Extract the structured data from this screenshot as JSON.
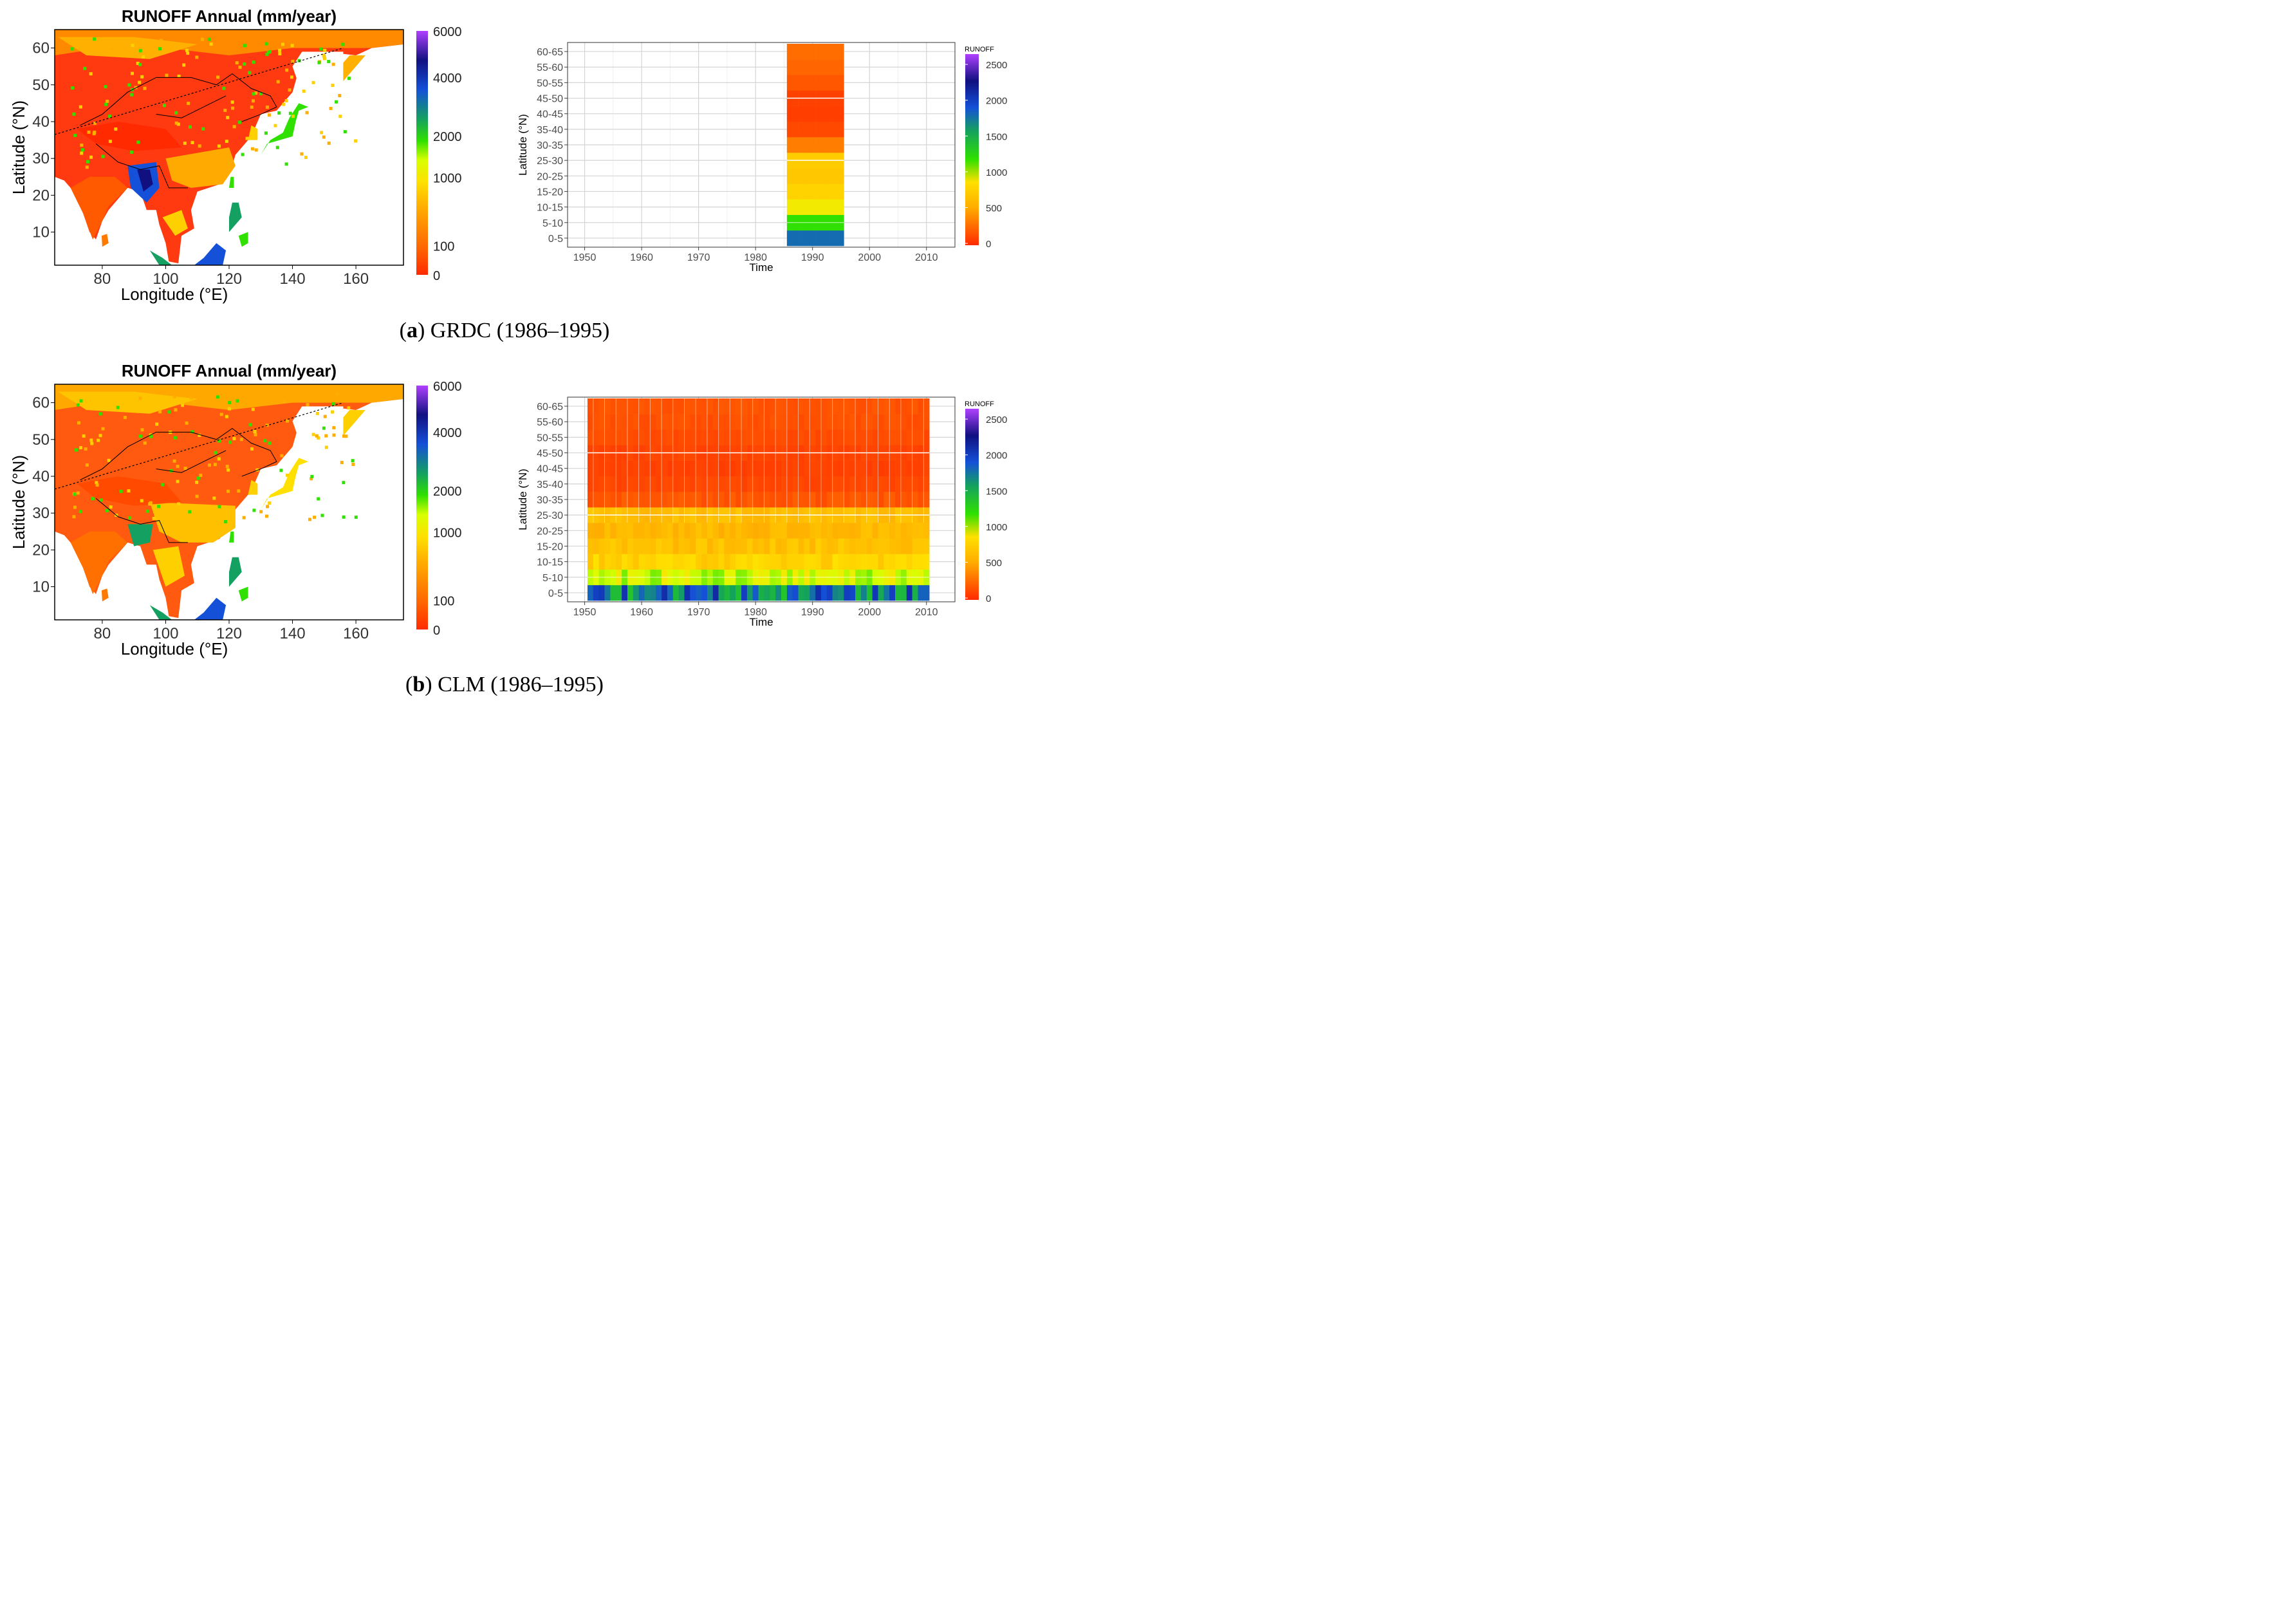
{
  "colors": {
    "scale": [
      "#ff2a00",
      "#ff6a00",
      "#ffae00",
      "#ffe000",
      "#d8ff00",
      "#2fe000",
      "#14a060",
      "#1450d8",
      "#101080",
      "#8a2be2",
      "#b040ff"
    ],
    "ocean": "#ffffff",
    "grid": "#d9d9d9"
  },
  "captions": [
    {
      "letter": "a",
      "text": " GRDC (1986–1995)",
      "open": "(",
      "close": ")"
    },
    {
      "letter": "b",
      "text": " CLM (1986–1995)",
      "open": "(",
      "close": ")"
    }
  ],
  "chart_data": [
    {
      "type": "heatmap",
      "panel": "a-map",
      "title": "RUNOFF Annual (mm/year)",
      "xlabel": "Longitude (°E)",
      "ylabel": "Latitude (°N)",
      "x_ticks": [
        80,
        100,
        120,
        140,
        160
      ],
      "y_ticks": [
        10,
        20,
        30,
        40,
        50,
        60
      ],
      "xlim": [
        65,
        175
      ],
      "ylim": [
        1,
        65
      ],
      "colorbar_ticks": [
        "6000",
        "4000",
        "2000",
        "1000",
        "100",
        "0"
      ]
    },
    {
      "type": "heatmap",
      "panel": "a-hovmoller",
      "xlabel": "Time",
      "ylabel": "Latitude (°N)",
      "legend_title": "RUNOFF",
      "x_ticks": [
        1950,
        1960,
        1970,
        1980,
        1990,
        2000,
        2010
      ],
      "xlim": [
        1947,
        2015
      ],
      "y_categories": [
        "0-5",
        "5-10",
        "10-15",
        "15-20",
        "20-25",
        "25-30",
        "30-35",
        "35-40",
        "40-45",
        "45-50",
        "50-55",
        "55-60",
        "60-65"
      ],
      "colorbar_ticks": [
        "2500",
        "2000",
        "1500",
        "1000",
        "500",
        "0"
      ],
      "years": [
        1986,
        1995
      ],
      "values": [
        1700,
        1150,
        850,
        720,
        650,
        680,
        320,
        120,
        80,
        90,
        170,
        230,
        260
      ]
    },
    {
      "type": "heatmap",
      "panel": "b-map",
      "title": "RUNOFF Annual (mm/year)",
      "xlabel": "Longitude (°E)",
      "ylabel": "Latitude (°N)",
      "x_ticks": [
        80,
        100,
        120,
        140,
        160
      ],
      "y_ticks": [
        10,
        20,
        30,
        40,
        50,
        60
      ],
      "xlim": [
        65,
        175
      ],
      "ylim": [
        1,
        65
      ],
      "colorbar_ticks": [
        "6000",
        "4000",
        "2000",
        "1000",
        "100",
        "0"
      ]
    },
    {
      "type": "heatmap",
      "panel": "b-hovmoller",
      "xlabel": "Time",
      "ylabel": "Latitude (°N)",
      "legend_title": "RUNOFF",
      "x_ticks": [
        1950,
        1960,
        1970,
        1980,
        1990,
        2000,
        2010
      ],
      "xlim": [
        1947,
        2015
      ],
      "y_categories": [
        "0-5",
        "5-10",
        "10-15",
        "15-20",
        "20-25",
        "25-30",
        "30-35",
        "35-40",
        "40-45",
        "45-50",
        "50-55",
        "55-60",
        "60-65"
      ],
      "colorbar_ticks": [
        "2500",
        "2000",
        "1500",
        "1000",
        "500",
        "0"
      ],
      "years": [
        1951,
        2010
      ],
      "band_mean": [
        1650,
        950,
        720,
        620,
        560,
        600,
        170,
        110,
        90,
        100,
        130,
        150,
        160
      ],
      "band_jitter": [
        380,
        120,
        90,
        80,
        70,
        60,
        40,
        25,
        20,
        20,
        25,
        25,
        25
      ]
    }
  ]
}
